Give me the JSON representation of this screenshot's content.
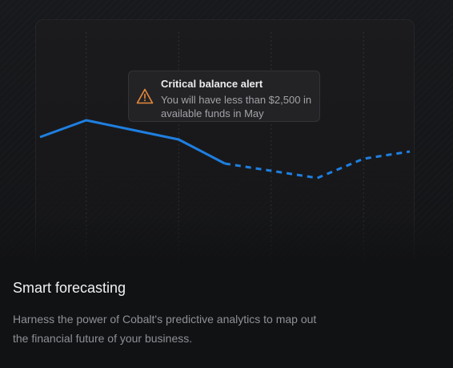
{
  "alert": {
    "title": "Critical balance alert",
    "message": "You will have less than $2,500 in available funds in May",
    "icon": "warning-triangle-icon",
    "icon_color": "#e58a3a"
  },
  "feature": {
    "title": "Smart forecasting",
    "description": "Harness the power of Cobalt's predictive analytics to map out the financial future of your business."
  },
  "chart_data": {
    "type": "line",
    "x": [
      0,
      1,
      2,
      3,
      4,
      5,
      6,
      7,
      8
    ],
    "series": [
      {
        "values": [
          4.3,
          5.0,
          4.6,
          4.2,
          3.2,
          2.9,
          2.6,
          3.4,
          3.7
        ]
      }
    ],
    "forecast_from_index": 4,
    "grid": true,
    "accent_color": "#1f7fe0"
  }
}
